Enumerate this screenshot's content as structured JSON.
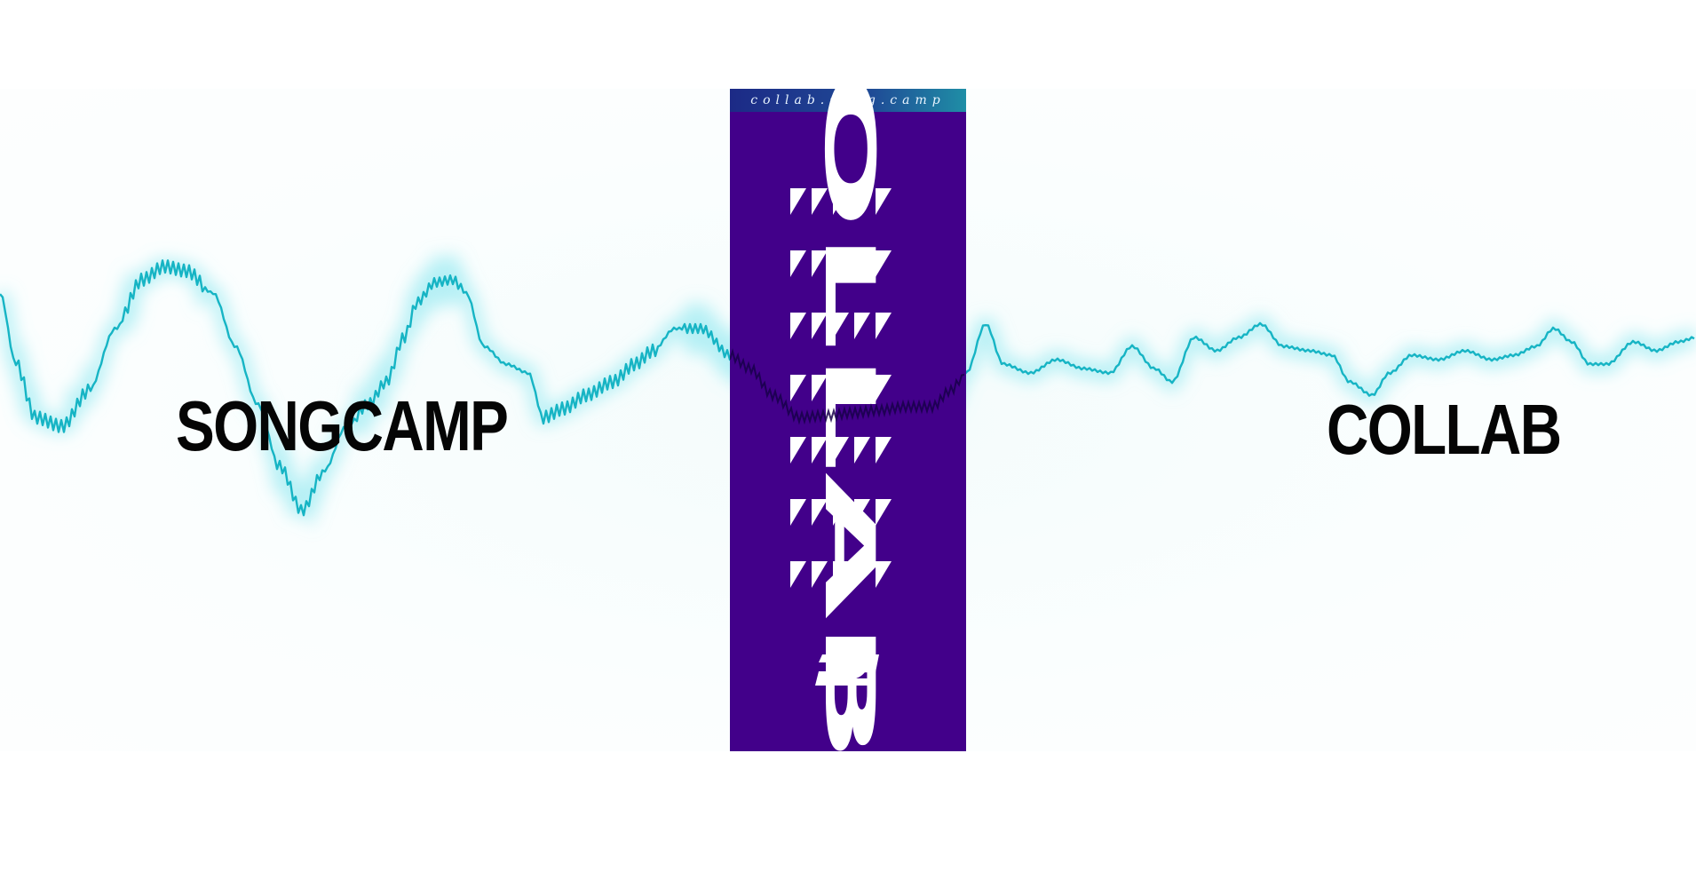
{
  "banner": {
    "left_word": "SONGCAMP",
    "right_word": "COLLAB"
  },
  "poster": {
    "url": "collab.song.camp",
    "vertical_word": "COLLAB",
    "logo": "songcamp-s-logo"
  },
  "colors": {
    "wave": "#16b4c4",
    "poster_background": "#42008a",
    "poster_text": "#ffffff",
    "word": "#050505"
  }
}
